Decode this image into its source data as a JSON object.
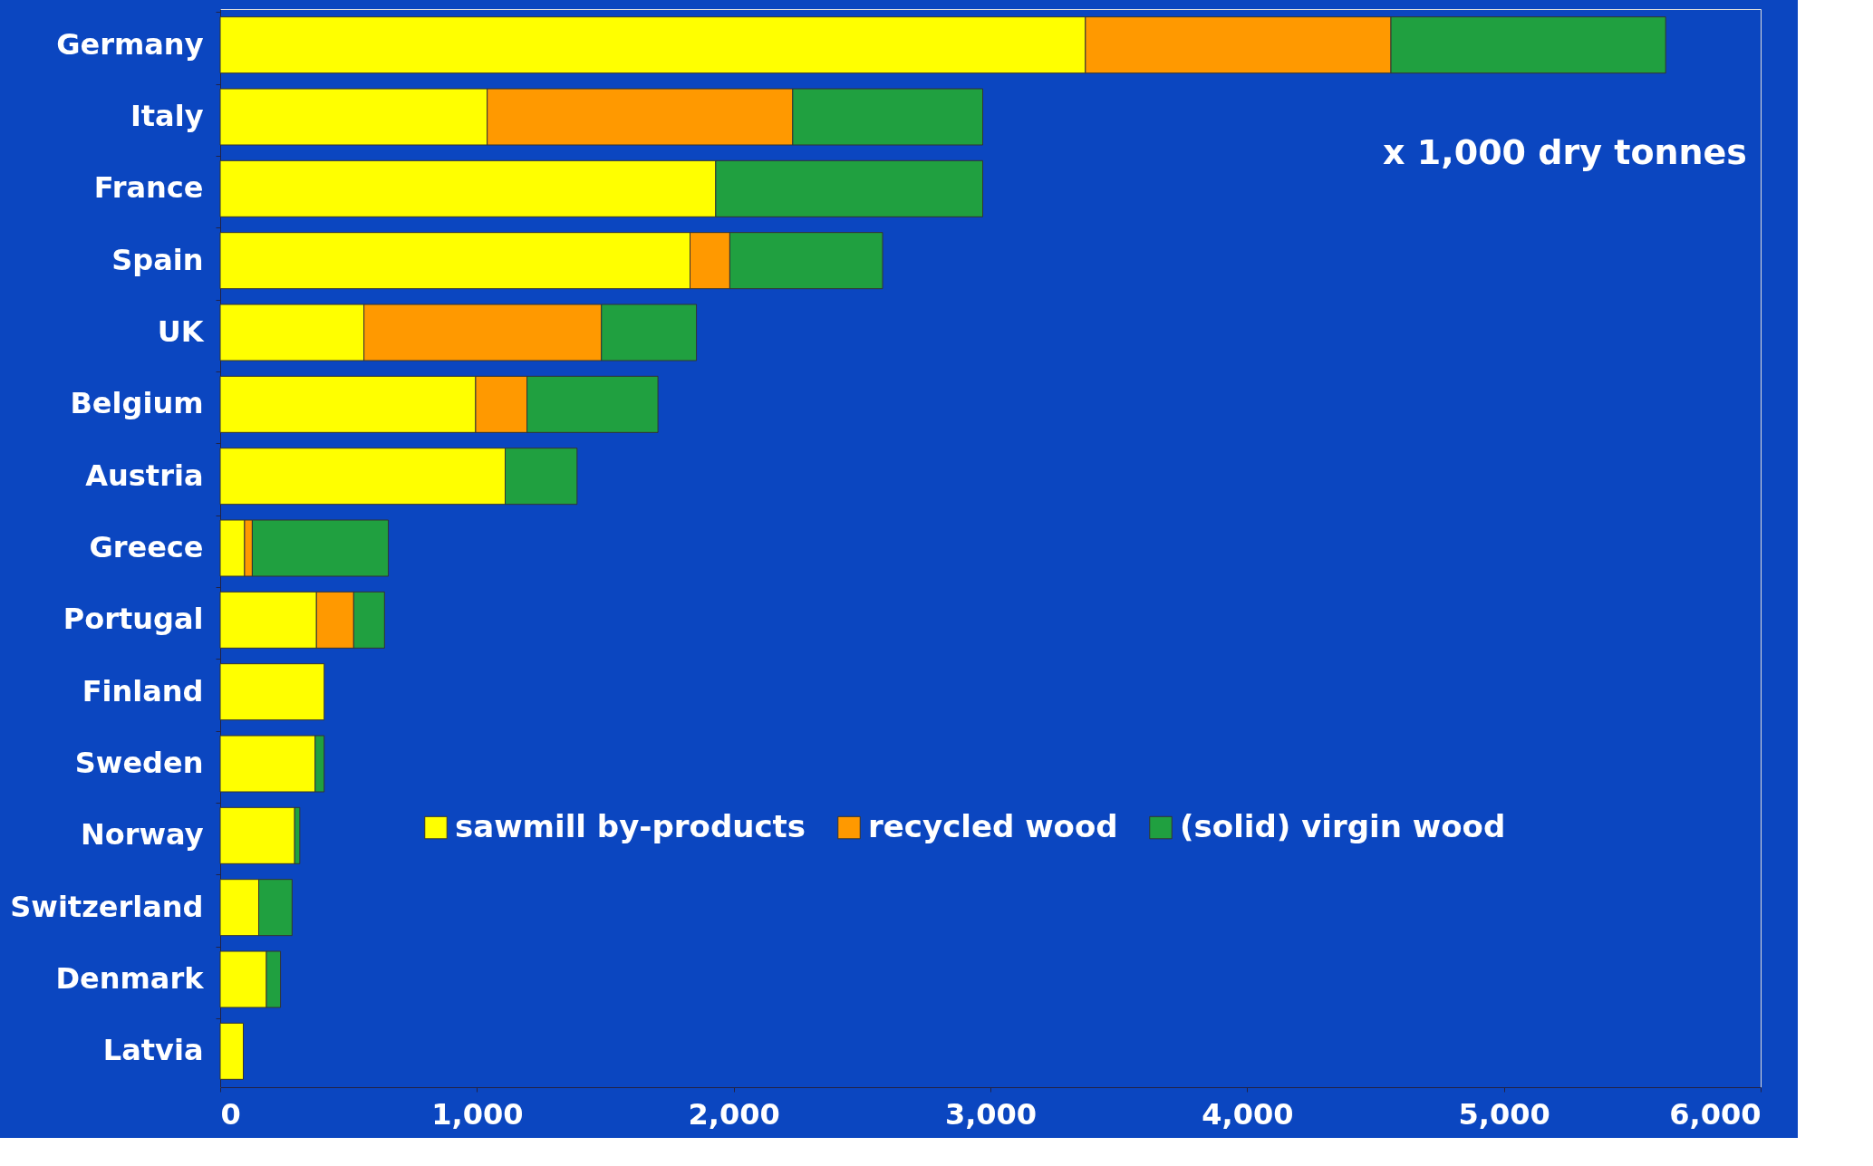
{
  "chart_data": {
    "type": "bar",
    "orientation": "horizontal",
    "stacked": true,
    "categories": [
      "Germany",
      "Italy",
      "France",
      "Spain",
      "UK",
      "Belgium",
      "Austria",
      "Greece",
      "Portugal",
      "Finland",
      "Sweden",
      "Norway",
      "Switzerland",
      "Denmark",
      "Latvia"
    ],
    "series": [
      {
        "name": "sawmill by-products",
        "color": "#ffff00",
        "values": [
          3370,
          1040,
          1930,
          1830,
          560,
          995,
          1110,
          95,
          375,
          405,
          370,
          290,
          150,
          180,
          90
        ]
      },
      {
        "name": "recycled wood",
        "color": "#ff9900",
        "values": [
          1190,
          1190,
          0,
          155,
          925,
          200,
          0,
          30,
          145,
          0,
          0,
          0,
          0,
          0,
          0
        ]
      },
      {
        "name": "(solid) virgin wood",
        "color": "#20a040",
        "values": [
          1070,
          740,
          1040,
          595,
          370,
          510,
          280,
          530,
          120,
          0,
          35,
          20,
          130,
          55,
          0
        ]
      }
    ],
    "xlim": [
      0,
      6000
    ],
    "xticks": [
      0,
      {
        "value": 1000,
        "label": "1,000"
      },
      {
        "value": 2000,
        "label": "2,000"
      },
      {
        "value": 3000,
        "label": "3,000"
      },
      {
        "value": 4000,
        "label": "4,000"
      },
      {
        "value": 5000,
        "label": "5,000"
      },
      {
        "value": 6000,
        "label": "6,000"
      }
    ],
    "annotations": [
      "x 1,000 dry tonnes"
    ],
    "legend": "bottom right",
    "grid": false
  }
}
